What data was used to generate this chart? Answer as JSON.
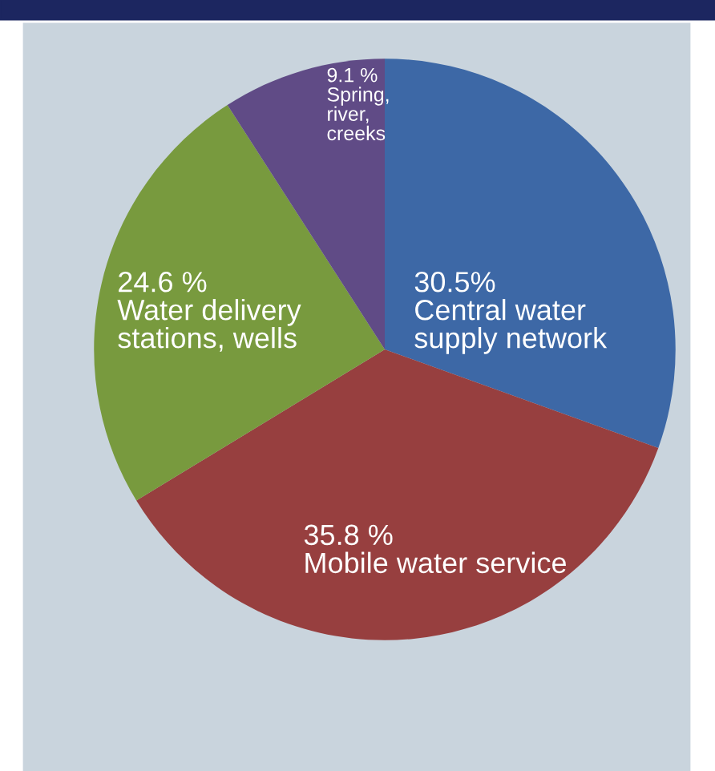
{
  "chart_data": {
    "type": "pie",
    "categories": [
      "Central water\nsupply network",
      "Mobile water service",
      "Water delivery\nstations, wells",
      "Spring,\nriver,\ncreeks"
    ],
    "values": [
      30.5,
      35.8,
      24.6,
      9.1
    ],
    "value_labels": [
      "30.5%",
      "35.8 %",
      "24.6 %",
      "9.1 %"
    ],
    "colors": [
      "#3d68a6",
      "#973f3f",
      "#789a3e",
      "#604b86"
    ],
    "legend": false
  }
}
